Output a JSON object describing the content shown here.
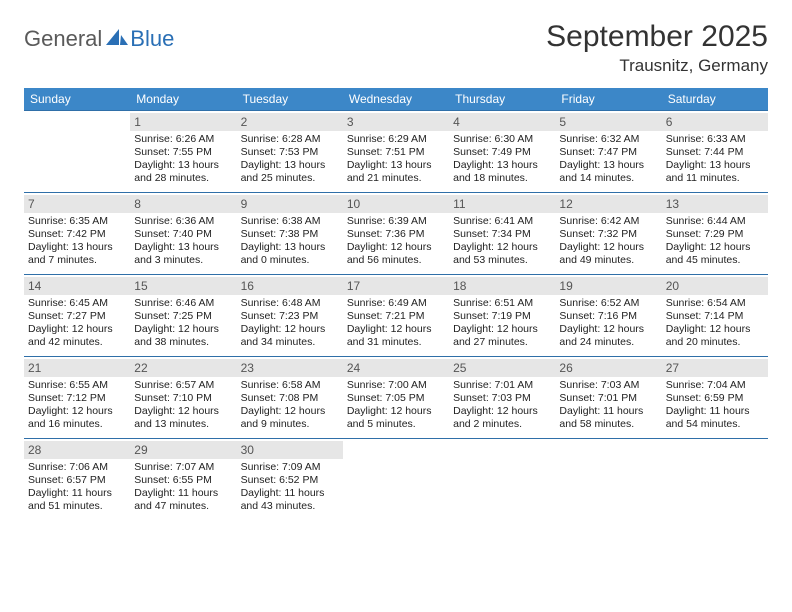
{
  "logo": {
    "general": "General",
    "blue": "Blue"
  },
  "title": "September 2025",
  "location": "Trausnitz, Germany",
  "colors": {
    "header_bg": "#3c87c8",
    "header_text": "#ffffff",
    "daynum_bg": "#e6e6e6",
    "daynum_text": "#555555",
    "cell_text": "#222222",
    "rule": "#2f6fa8",
    "logo_gray": "#5a5a5a",
    "logo_blue": "#2a6fb5",
    "page_bg": "#ffffff"
  },
  "fonts": {
    "title_size": 30,
    "location_size": 17,
    "weekday_size": 12,
    "daynum_size": 12,
    "cell_size": 10.5
  },
  "weekdays": [
    "Sunday",
    "Monday",
    "Tuesday",
    "Wednesday",
    "Thursday",
    "Friday",
    "Saturday"
  ],
  "weeks": [
    [
      null,
      {
        "n": "1",
        "sr": "6:26 AM",
        "ss": "7:55 PM",
        "dl": "13 hours and 28 minutes."
      },
      {
        "n": "2",
        "sr": "6:28 AM",
        "ss": "7:53 PM",
        "dl": "13 hours and 25 minutes."
      },
      {
        "n": "3",
        "sr": "6:29 AM",
        "ss": "7:51 PM",
        "dl": "13 hours and 21 minutes."
      },
      {
        "n": "4",
        "sr": "6:30 AM",
        "ss": "7:49 PM",
        "dl": "13 hours and 18 minutes."
      },
      {
        "n": "5",
        "sr": "6:32 AM",
        "ss": "7:47 PM",
        "dl": "13 hours and 14 minutes."
      },
      {
        "n": "6",
        "sr": "6:33 AM",
        "ss": "7:44 PM",
        "dl": "13 hours and 11 minutes."
      }
    ],
    [
      {
        "n": "7",
        "sr": "6:35 AM",
        "ss": "7:42 PM",
        "dl": "13 hours and 7 minutes."
      },
      {
        "n": "8",
        "sr": "6:36 AM",
        "ss": "7:40 PM",
        "dl": "13 hours and 3 minutes."
      },
      {
        "n": "9",
        "sr": "6:38 AM",
        "ss": "7:38 PM",
        "dl": "13 hours and 0 minutes."
      },
      {
        "n": "10",
        "sr": "6:39 AM",
        "ss": "7:36 PM",
        "dl": "12 hours and 56 minutes."
      },
      {
        "n": "11",
        "sr": "6:41 AM",
        "ss": "7:34 PM",
        "dl": "12 hours and 53 minutes."
      },
      {
        "n": "12",
        "sr": "6:42 AM",
        "ss": "7:32 PM",
        "dl": "12 hours and 49 minutes."
      },
      {
        "n": "13",
        "sr": "6:44 AM",
        "ss": "7:29 PM",
        "dl": "12 hours and 45 minutes."
      }
    ],
    [
      {
        "n": "14",
        "sr": "6:45 AM",
        "ss": "7:27 PM",
        "dl": "12 hours and 42 minutes."
      },
      {
        "n": "15",
        "sr": "6:46 AM",
        "ss": "7:25 PM",
        "dl": "12 hours and 38 minutes."
      },
      {
        "n": "16",
        "sr": "6:48 AM",
        "ss": "7:23 PM",
        "dl": "12 hours and 34 minutes."
      },
      {
        "n": "17",
        "sr": "6:49 AM",
        "ss": "7:21 PM",
        "dl": "12 hours and 31 minutes."
      },
      {
        "n": "18",
        "sr": "6:51 AM",
        "ss": "7:19 PM",
        "dl": "12 hours and 27 minutes."
      },
      {
        "n": "19",
        "sr": "6:52 AM",
        "ss": "7:16 PM",
        "dl": "12 hours and 24 minutes."
      },
      {
        "n": "20",
        "sr": "6:54 AM",
        "ss": "7:14 PM",
        "dl": "12 hours and 20 minutes."
      }
    ],
    [
      {
        "n": "21",
        "sr": "6:55 AM",
        "ss": "7:12 PM",
        "dl": "12 hours and 16 minutes."
      },
      {
        "n": "22",
        "sr": "6:57 AM",
        "ss": "7:10 PM",
        "dl": "12 hours and 13 minutes."
      },
      {
        "n": "23",
        "sr": "6:58 AM",
        "ss": "7:08 PM",
        "dl": "12 hours and 9 minutes."
      },
      {
        "n": "24",
        "sr": "7:00 AM",
        "ss": "7:05 PM",
        "dl": "12 hours and 5 minutes."
      },
      {
        "n": "25",
        "sr": "7:01 AM",
        "ss": "7:03 PM",
        "dl": "12 hours and 2 minutes."
      },
      {
        "n": "26",
        "sr": "7:03 AM",
        "ss": "7:01 PM",
        "dl": "11 hours and 58 minutes."
      },
      {
        "n": "27",
        "sr": "7:04 AM",
        "ss": "6:59 PM",
        "dl": "11 hours and 54 minutes."
      }
    ],
    [
      {
        "n": "28",
        "sr": "7:06 AM",
        "ss": "6:57 PM",
        "dl": "11 hours and 51 minutes."
      },
      {
        "n": "29",
        "sr": "7:07 AM",
        "ss": "6:55 PM",
        "dl": "11 hours and 47 minutes."
      },
      {
        "n": "30",
        "sr": "7:09 AM",
        "ss": "6:52 PM",
        "dl": "11 hours and 43 minutes."
      },
      null,
      null,
      null,
      null
    ]
  ],
  "labels": {
    "sunrise": "Sunrise:",
    "sunset": "Sunset:",
    "daylight": "Daylight:"
  }
}
